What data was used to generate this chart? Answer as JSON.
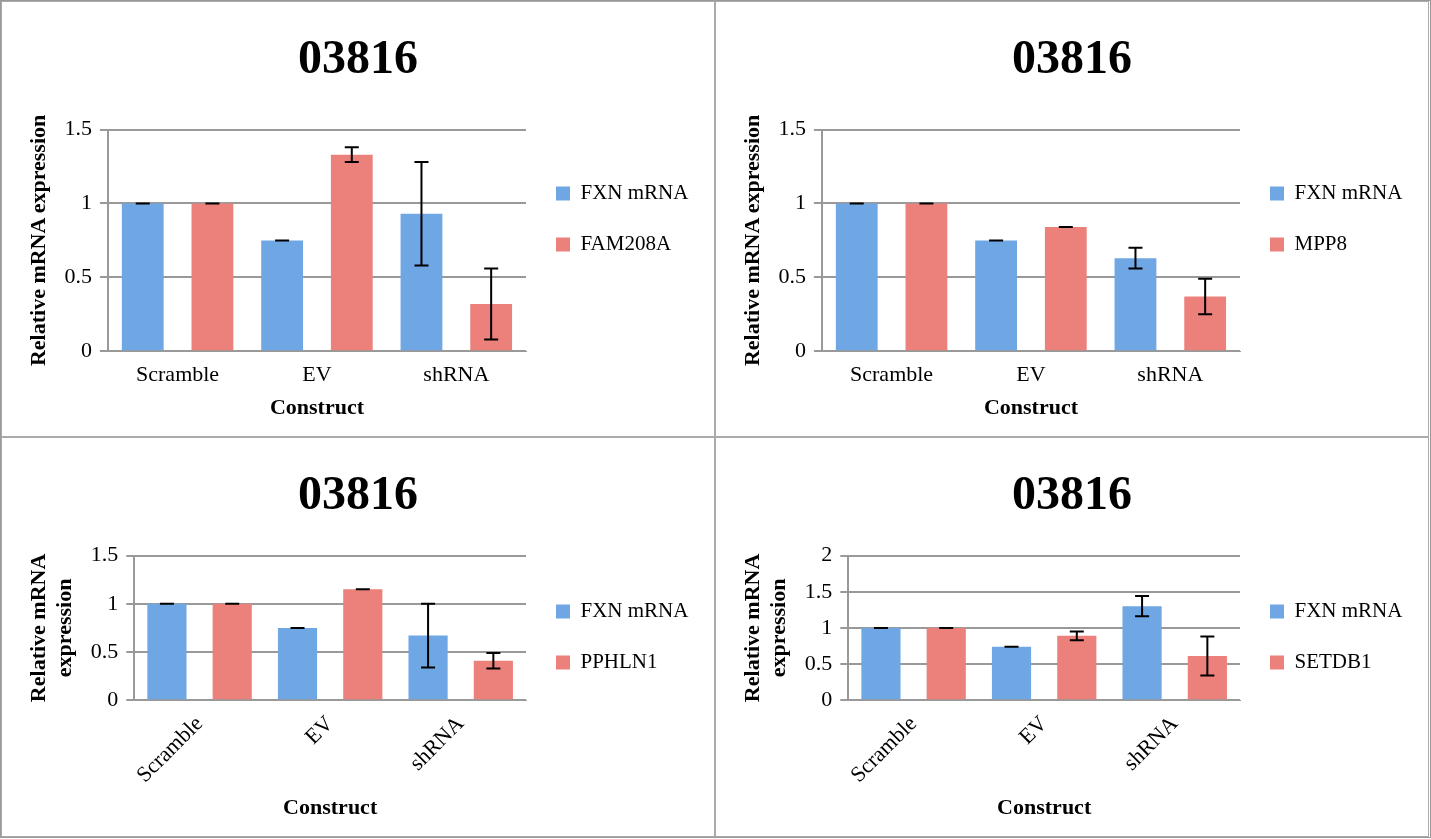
{
  "chart_data": [
    {
      "type": "bar",
      "title": "03816",
      "xlabel": "Construct",
      "ylabel": "Relative mRNA expression",
      "categories": [
        "Scramble",
        "EV",
        "shRNA"
      ],
      "ylim": [
        0,
        1.5
      ],
      "yticks": [
        0,
        0.5,
        1,
        1.5
      ],
      "grid": "y",
      "legend": "right",
      "series": [
        {
          "name": "FXN mRNA",
          "color": "#6fa6e4",
          "values": [
            1,
            0.75,
            0.93
          ],
          "errors": [
            0,
            0,
            0.35
          ]
        },
        {
          "name": "FAM208A",
          "color": "#ec817b",
          "values": [
            1,
            1.33,
            0.32
          ],
          "errors": [
            0,
            0.05,
            0.24
          ]
        }
      ]
    },
    {
      "type": "bar",
      "title": "03816",
      "xlabel": "Construct",
      "ylabel": "Relative mRNA expression",
      "categories": [
        "Scramble",
        "EV",
        "shRNA"
      ],
      "ylim": [
        0,
        1.5
      ],
      "yticks": [
        0,
        0.5,
        1,
        1.5
      ],
      "grid": "y",
      "legend": "right",
      "series": [
        {
          "name": "FXN mRNA",
          "color": "#6fa6e4",
          "values": [
            1,
            0.75,
            0.63
          ],
          "errors": [
            0,
            0,
            0.07
          ]
        },
        {
          "name": "MPP8",
          "color": "#ec817b",
          "values": [
            1,
            0.84,
            0.37
          ],
          "errors": [
            0,
            0,
            0.12
          ]
        }
      ]
    },
    {
      "type": "bar",
      "title": "03816",
      "xlabel": "Construct",
      "ylabel": "Relative mRNA expression",
      "categories": [
        "Scramble",
        "EV",
        "shRNA"
      ],
      "ylim": [
        0,
        1.5
      ],
      "yticks": [
        0,
        0.5,
        1,
        1.5
      ],
      "grid": "y",
      "legend": "right",
      "series": [
        {
          "name": "FXN mRNA",
          "color": "#6fa6e4",
          "values": [
            1,
            0.75,
            0.67
          ],
          "errors": [
            0,
            0,
            0.33
          ]
        },
        {
          "name": "PPHLN1",
          "color": "#ec817b",
          "values": [
            1,
            1.15,
            0.41
          ],
          "errors": [
            0,
            0,
            0.08
          ]
        }
      ]
    },
    {
      "type": "bar",
      "title": "03816",
      "xlabel": "Construct",
      "ylabel": "Relative mRNA expression",
      "categories": [
        "Scramble",
        "EV",
        "shRNA"
      ],
      "ylim": [
        0,
        2
      ],
      "yticks": [
        0,
        0.5,
        1,
        1.5,
        2
      ],
      "grid": "y",
      "legend": "right",
      "series": [
        {
          "name": "FXN mRNA",
          "color": "#6fa6e4",
          "values": [
            1,
            0.74,
            1.3
          ],
          "errors": [
            0,
            0,
            0.14
          ]
        },
        {
          "name": "SETDB1",
          "color": "#ec817b",
          "values": [
            1,
            0.89,
            0.61
          ],
          "errors": [
            0,
            0.06,
            0.27
          ]
        }
      ]
    }
  ]
}
